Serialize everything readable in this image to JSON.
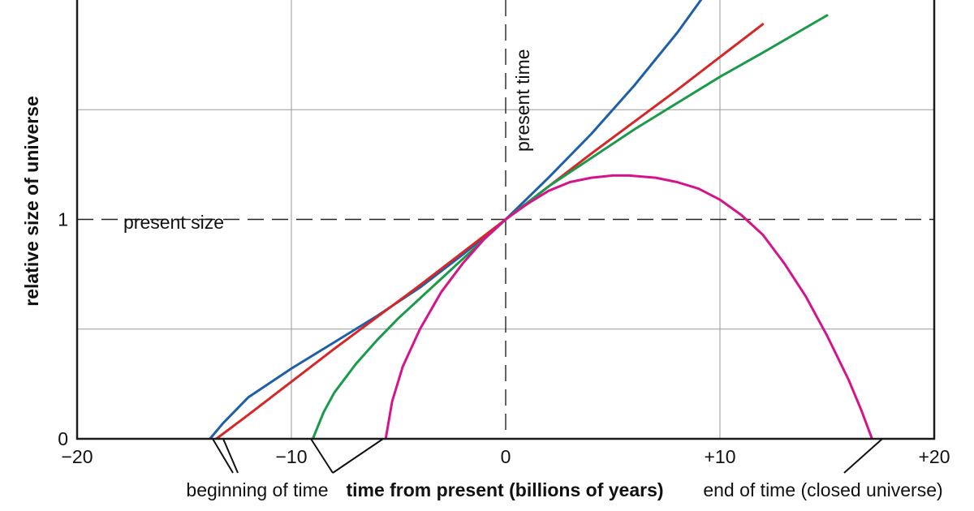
{
  "chart_data": {
    "type": "line",
    "xlabel": "time from present (billions of years)",
    "ylabel": "relative size of universe",
    "xlim": [
      -20,
      20
    ],
    "ylim": [
      0,
      2
    ],
    "x_ticks": [
      "−20",
      "−10",
      "0",
      "+10",
      "+20"
    ],
    "y_ticks": [
      "0",
      "1"
    ],
    "grid": true,
    "reference_lines": {
      "present_size": {
        "y": 1,
        "label": "present size"
      },
      "present_time": {
        "x": 0,
        "label": "present time"
      }
    },
    "annotations": {
      "beginning": "beginning of time",
      "end": "end of time (closed universe)"
    },
    "colors": {
      "blue": "#1f5fa8",
      "red": "#d62728",
      "green": "#1a9a4a",
      "magenta": "#d4148c"
    },
    "series": [
      {
        "color": "blue",
        "x": [
          -13.8,
          -13.2,
          -12,
          -10,
          -8,
          -6,
          -4,
          -2,
          0,
          2,
          4,
          6,
          8,
          10
        ],
        "y": [
          0,
          0.07,
          0.19,
          0.32,
          0.44,
          0.56,
          0.69,
          0.84,
          1.0,
          1.19,
          1.39,
          1.61,
          1.85,
          2.12
        ]
      },
      {
        "color": "red",
        "x": [
          -13.5,
          -12,
          -8,
          -4,
          0,
          4,
          8,
          12
        ],
        "y": [
          0,
          0.11,
          0.41,
          0.7,
          1.0,
          1.3,
          1.59,
          1.89
        ]
      },
      {
        "color": "green",
        "x": [
          -9.0,
          -8.5,
          -8,
          -7,
          -6,
          -5,
          -4,
          -3,
          -2,
          0,
          2,
          4,
          6,
          8,
          10,
          12,
          15
        ],
        "y": [
          0,
          0.12,
          0.21,
          0.34,
          0.45,
          0.55,
          0.64,
          0.73,
          0.82,
          1.0,
          1.15,
          1.28,
          1.41,
          1.53,
          1.65,
          1.76,
          1.93
        ]
      },
      {
        "color": "magenta",
        "x": [
          -5.6,
          -5.3,
          -4.8,
          -4,
          -3,
          -2,
          -1,
          0,
          1,
          2,
          3,
          4,
          5,
          5.75,
          7,
          8,
          9,
          10,
          11,
          12,
          13,
          14,
          15,
          16,
          16.6,
          17.1
        ],
        "y": [
          0,
          0.17,
          0.33,
          0.5,
          0.67,
          0.8,
          0.91,
          1.0,
          1.07,
          1.13,
          1.17,
          1.19,
          1.2,
          1.2,
          1.19,
          1.17,
          1.14,
          1.09,
          1.02,
          0.93,
          0.8,
          0.65,
          0.47,
          0.27,
          0.13,
          0
        ]
      }
    ]
  }
}
